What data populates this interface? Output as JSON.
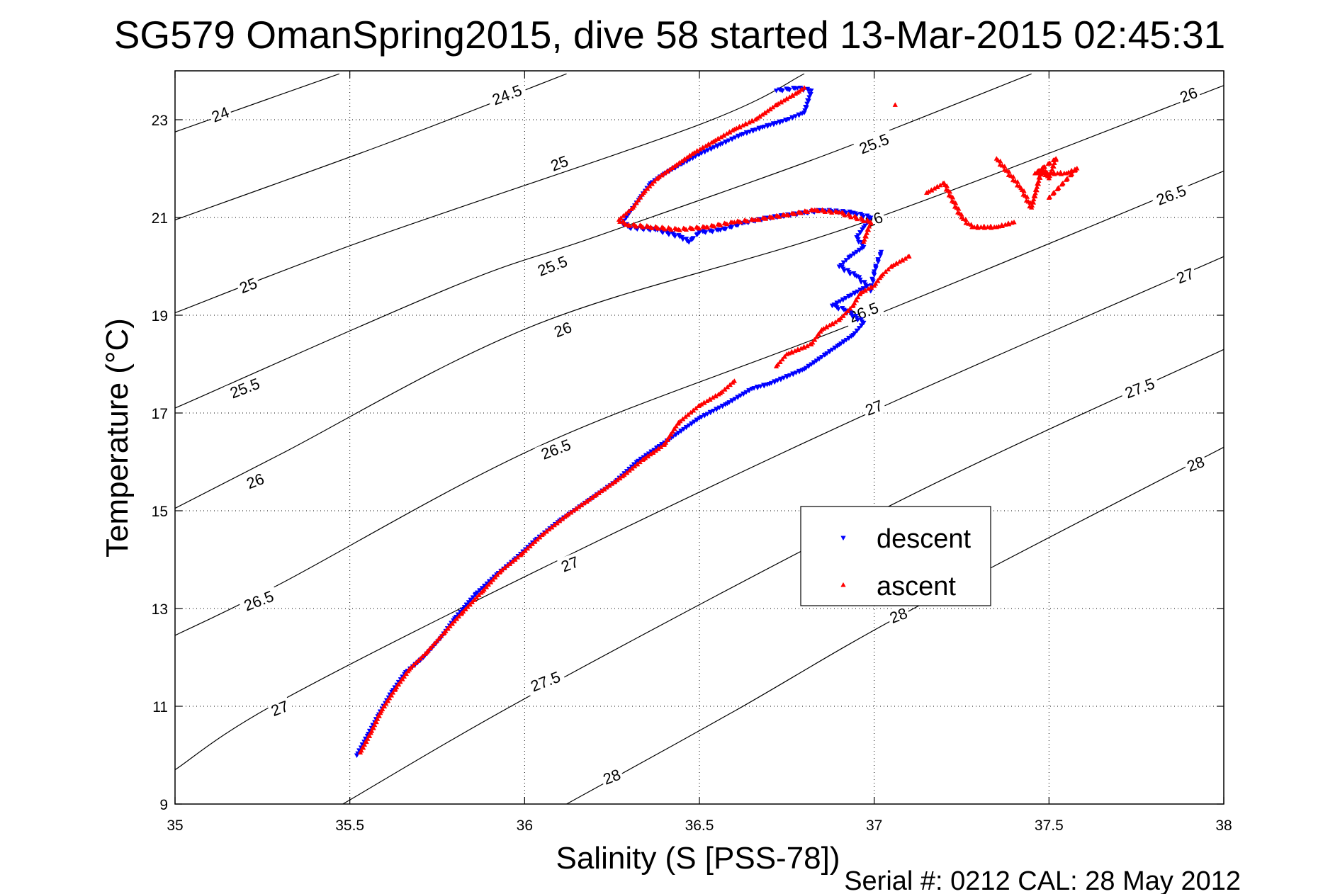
{
  "chart_data": {
    "type": "scatter",
    "title": "SG579 OmanSpring2015, dive 58 started 13-Mar-2015 02:45:31",
    "xlabel": "Salinity (S [PSS-78])",
    "ylabel": "Temperature (°C)",
    "xlim": [
      35,
      38
    ],
    "ylim": [
      9,
      24
    ],
    "xticks": [
      35,
      35.5,
      36,
      36.5,
      37,
      37.5,
      38
    ],
    "xtick_labels": [
      "35",
      "35.5",
      "36",
      "36.5",
      "37",
      "37.5",
      "38"
    ],
    "yticks": [
      9,
      11,
      13,
      15,
      17,
      19,
      21,
      23
    ],
    "ytick_labels": [
      "9",
      "11",
      "13",
      "15",
      "17",
      "19",
      "21",
      "23"
    ],
    "grid": true,
    "legend_position": "center-right",
    "footer": "Serial #: 0212  CAL: 28 May 2012",
    "colors": {
      "descent": "#0000ff",
      "ascent": "#ff0000",
      "contour": "#000000"
    },
    "density_contours": [
      {
        "level": "24",
        "points": [
          [
            35.0,
            22.75
          ],
          [
            35.47,
            23.94
          ]
        ],
        "labels": [
          {
            "s": 35.13,
            "t": 23.1,
            "text": "24"
          }
        ]
      },
      {
        "level": "24.5",
        "points": [
          [
            35.0,
            20.95
          ],
          [
            35.6,
            22.5
          ],
          [
            36.12,
            23.94
          ]
        ],
        "labels": [
          {
            "s": 35.95,
            "t": 23.5,
            "text": "24.5"
          }
        ]
      },
      {
        "level": "25",
        "points": [
          [
            35.0,
            19.05
          ],
          [
            35.55,
            20.55
          ],
          [
            36.5,
            22.9
          ],
          [
            36.8,
            23.94
          ]
        ],
        "labels": [
          {
            "s": 35.21,
            "t": 19.6,
            "text": "25"
          },
          {
            "s": 36.1,
            "t": 22.1,
            "text": "25"
          }
        ]
      },
      {
        "level": "25.5",
        "points": [
          [
            35.0,
            17.1
          ],
          [
            35.8,
            19.6
          ],
          [
            36.2,
            20.6
          ],
          [
            36.85,
            22.25
          ],
          [
            37.45,
            23.94
          ]
        ],
        "labels": [
          {
            "s": 35.2,
            "t": 17.5,
            "text": "25.5"
          },
          {
            "s": 36.08,
            "t": 20.0,
            "text": "25.5"
          },
          {
            "s": 37.0,
            "t": 22.5,
            "text": "25.5"
          }
        ]
      },
      {
        "level": "26",
        "points": [
          [
            35.0,
            15.05
          ],
          [
            35.3,
            16.15
          ],
          [
            36.03,
            18.8
          ],
          [
            36.95,
            20.85
          ],
          [
            38.0,
            23.7
          ]
        ],
        "labels": [
          {
            "s": 35.23,
            "t": 15.6,
            "text": "26"
          },
          {
            "s": 36.11,
            "t": 18.7,
            "text": "26"
          },
          {
            "s": 37.0,
            "t": 20.95,
            "text": "26"
          },
          {
            "s": 37.9,
            "t": 23.5,
            "text": "26"
          }
        ]
      },
      {
        "level": "26.5",
        "points": [
          [
            35.0,
            12.45
          ],
          [
            35.3,
            13.5
          ],
          [
            36.05,
            16.35
          ],
          [
            36.95,
            18.85
          ],
          [
            38.0,
            21.95
          ]
        ],
        "labels": [
          {
            "s": 35.24,
            "t": 13.15,
            "text": "26.5"
          },
          {
            "s": 36.09,
            "t": 16.25,
            "text": "26.5"
          },
          {
            "s": 36.97,
            "t": 19.05,
            "text": "26.5"
          },
          {
            "s": 37.85,
            "t": 21.45,
            "text": "26.5"
          }
        ]
      },
      {
        "level": "27",
        "points": [
          [
            35.0,
            9.7
          ],
          [
            35.3,
            11.1
          ],
          [
            36.1,
            14.0
          ],
          [
            37.0,
            17.05
          ],
          [
            38.0,
            20.2
          ]
        ],
        "labels": [
          {
            "s": 35.3,
            "t": 10.95,
            "text": "27"
          },
          {
            "s": 36.13,
            "t": 13.9,
            "text": "27"
          },
          {
            "s": 37.0,
            "t": 17.1,
            "text": "27"
          },
          {
            "s": 37.89,
            "t": 19.8,
            "text": "27"
          }
        ]
      },
      {
        "level": "27.5",
        "points": [
          [
            35.48,
            9.0
          ],
          [
            36.05,
            11.35
          ],
          [
            37.1,
            15.3
          ],
          [
            38.0,
            18.3
          ]
        ],
        "labels": [
          {
            "s": 36.06,
            "t": 11.5,
            "text": "27.5"
          },
          {
            "s": 37.76,
            "t": 17.5,
            "text": "27.5"
          }
        ]
      },
      {
        "level": "28",
        "points": [
          [
            36.12,
            9.0
          ],
          [
            36.6,
            10.9
          ],
          [
            37.1,
            12.95
          ],
          [
            38.0,
            16.3
          ]
        ],
        "labels": [
          {
            "s": 36.25,
            "t": 9.55,
            "text": "28"
          },
          {
            "s": 37.07,
            "t": 12.85,
            "text": "28"
          },
          {
            "s": 37.92,
            "t": 15.95,
            "text": "28"
          }
        ]
      }
    ],
    "series": [
      {
        "name": "descent",
        "marker": "triangle-down",
        "points": [
          [
            35.52,
            10.0
          ],
          [
            35.55,
            10.4
          ],
          [
            35.58,
            10.8
          ],
          [
            35.62,
            11.3
          ],
          [
            35.66,
            11.7
          ],
          [
            35.71,
            12.0
          ],
          [
            35.76,
            12.4
          ],
          [
            35.8,
            12.8
          ],
          [
            35.86,
            13.3
          ],
          [
            35.92,
            13.7
          ],
          [
            35.97,
            14.0
          ],
          [
            36.03,
            14.4
          ],
          [
            36.1,
            14.8
          ],
          [
            36.18,
            15.2
          ],
          [
            36.26,
            15.6
          ],
          [
            36.32,
            16.0
          ],
          [
            36.38,
            16.3
          ],
          [
            36.42,
            16.5
          ],
          [
            36.5,
            16.9
          ],
          [
            36.58,
            17.2
          ],
          [
            36.65,
            17.5
          ],
          [
            36.7,
            17.6
          ],
          [
            36.8,
            17.9
          ],
          [
            36.86,
            18.2
          ],
          [
            36.9,
            18.4
          ],
          [
            36.94,
            18.6
          ],
          [
            36.97,
            18.85
          ],
          [
            36.92,
            19.1
          ],
          [
            36.88,
            19.2
          ],
          [
            36.93,
            19.4
          ],
          [
            36.98,
            19.6
          ],
          [
            36.95,
            19.8
          ],
          [
            36.9,
            20.0
          ],
          [
            36.93,
            20.2
          ],
          [
            36.97,
            20.4
          ],
          [
            36.95,
            20.6
          ],
          [
            36.97,
            20.8
          ],
          [
            36.99,
            21.0
          ],
          [
            36.94,
            21.1
          ],
          [
            36.85,
            21.15
          ],
          [
            36.8,
            21.1
          ],
          [
            36.7,
            21.0
          ],
          [
            36.63,
            20.9
          ],
          [
            36.56,
            20.75
          ],
          [
            36.5,
            20.7
          ],
          [
            36.47,
            20.5
          ],
          [
            36.45,
            20.6
          ],
          [
            36.38,
            20.75
          ],
          [
            36.3,
            20.8
          ],
          [
            36.28,
            20.9
          ],
          [
            36.3,
            21.1
          ],
          [
            36.33,
            21.4
          ],
          [
            36.36,
            21.7
          ],
          [
            36.4,
            21.9
          ],
          [
            36.45,
            22.1
          ],
          [
            36.5,
            22.3
          ],
          [
            36.56,
            22.5
          ],
          [
            36.62,
            22.7
          ],
          [
            36.68,
            22.85
          ],
          [
            36.75,
            23.0
          ],
          [
            36.8,
            23.15
          ],
          [
            36.82,
            23.6
          ],
          [
            36.78,
            23.65
          ],
          [
            36.72,
            23.6
          ],
          [
            37.02,
            20.3
          ],
          [
            37.0,
            19.9
          ],
          [
            36.99,
            19.5
          ]
        ]
      },
      {
        "name": "ascent",
        "marker": "triangle-up",
        "points": [
          [
            35.53,
            10.05
          ],
          [
            35.56,
            10.45
          ],
          [
            35.59,
            10.9
          ],
          [
            35.63,
            11.35
          ],
          [
            35.67,
            11.75
          ],
          [
            35.72,
            12.1
          ],
          [
            35.77,
            12.5
          ],
          [
            35.82,
            12.9
          ],
          [
            35.88,
            13.35
          ],
          [
            35.93,
            13.75
          ],
          [
            35.99,
            14.1
          ],
          [
            36.05,
            14.5
          ],
          [
            36.12,
            14.9
          ],
          [
            36.2,
            15.3
          ],
          [
            36.28,
            15.7
          ],
          [
            36.34,
            16.05
          ],
          [
            36.4,
            16.35
          ],
          [
            36.44,
            16.8
          ],
          [
            36.5,
            17.15
          ],
          [
            36.56,
            17.4
          ],
          [
            36.6,
            17.65
          ],
          [
            36.72,
            17.95
          ],
          [
            36.75,
            18.2
          ],
          [
            36.82,
            18.4
          ],
          [
            36.85,
            18.7
          ],
          [
            36.9,
            18.9
          ],
          [
            36.94,
            19.2
          ],
          [
            36.96,
            19.45
          ],
          [
            37.0,
            19.6
          ],
          [
            37.02,
            19.8
          ],
          [
            37.05,
            20.0
          ],
          [
            37.1,
            20.2
          ],
          [
            36.97,
            20.5
          ],
          [
            36.99,
            20.9
          ],
          [
            36.9,
            21.1
          ],
          [
            36.83,
            21.15
          ],
          [
            36.75,
            21.05
          ],
          [
            36.66,
            20.95
          ],
          [
            36.6,
            20.9
          ],
          [
            36.52,
            20.8
          ],
          [
            36.44,
            20.75
          ],
          [
            36.36,
            20.8
          ],
          [
            36.29,
            20.85
          ],
          [
            36.27,
            20.95
          ],
          [
            36.31,
            21.2
          ],
          [
            36.34,
            21.5
          ],
          [
            36.38,
            21.8
          ],
          [
            36.43,
            22.05
          ],
          [
            36.48,
            22.3
          ],
          [
            36.54,
            22.55
          ],
          [
            36.6,
            22.8
          ],
          [
            36.66,
            23.0
          ],
          [
            36.72,
            23.3
          ],
          [
            36.78,
            23.55
          ],
          [
            36.8,
            23.65
          ],
          [
            37.06,
            23.3
          ],
          [
            37.15,
            21.5
          ],
          [
            37.2,
            21.7
          ],
          [
            37.25,
            21.0
          ],
          [
            37.28,
            20.8
          ],
          [
            37.35,
            20.8
          ],
          [
            37.4,
            20.9
          ],
          [
            37.35,
            22.2
          ],
          [
            37.42,
            21.6
          ],
          [
            37.45,
            21.2
          ],
          [
            37.48,
            22.0
          ],
          [
            37.5,
            21.8
          ],
          [
            37.52,
            22.2
          ],
          [
            37.46,
            21.9
          ],
          [
            37.55,
            21.9
          ],
          [
            37.58,
            22.0
          ],
          [
            37.5,
            21.4
          ]
        ]
      }
    ]
  }
}
